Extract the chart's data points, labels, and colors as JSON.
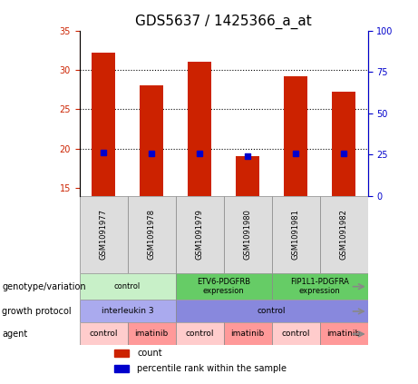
{
  "title": "GDS5637 / 1425366_a_at",
  "samples": [
    "GSM1091977",
    "GSM1091978",
    "GSM1091979",
    "GSM1091980",
    "GSM1091981",
    "GSM1091982"
  ],
  "counts": [
    32.2,
    28.0,
    31.0,
    19.0,
    29.2,
    27.3
  ],
  "percentile_ranks": [
    26.0,
    25.8,
    25.8,
    24.2,
    25.8,
    25.5
  ],
  "ylim_left": [
    14,
    35
  ],
  "ylim_right": [
    0,
    100
  ],
  "yticks_left": [
    15,
    20,
    25,
    30,
    35
  ],
  "yticks_right": [
    0,
    25,
    50,
    75,
    100
  ],
  "bar_color": "#cc2200",
  "dot_color": "#0000cc",
  "title_fontsize": 11,
  "bar_width": 0.5,
  "gridline_values": [
    20,
    25,
    30
  ],
  "genotype_groups": [
    {
      "label": "control",
      "span": [
        0,
        2
      ],
      "color": "#c8f0c8"
    },
    {
      "label": "ETV6-PDGFRB\nexpression",
      "span": [
        2,
        4
      ],
      "color": "#66cc66"
    },
    {
      "label": "FIP1L1-PDGFRA\nexpression",
      "span": [
        4,
        6
      ],
      "color": "#66cc66"
    }
  ],
  "growth_protocol_groups": [
    {
      "label": "interleukin 3",
      "span": [
        0,
        2
      ],
      "color": "#aaaaee"
    },
    {
      "label": "control",
      "span": [
        2,
        6
      ],
      "color": "#8888dd"
    }
  ],
  "agent_groups": [
    {
      "label": "control",
      "span": [
        0,
        1
      ],
      "color": "#ffcccc"
    },
    {
      "label": "imatinib",
      "span": [
        1,
        2
      ],
      "color": "#ff9999"
    },
    {
      "label": "control",
      "span": [
        2,
        3
      ],
      "color": "#ffcccc"
    },
    {
      "label": "imatinib",
      "span": [
        3,
        4
      ],
      "color": "#ff9999"
    },
    {
      "label": "control",
      "span": [
        4,
        5
      ],
      "color": "#ffcccc"
    },
    {
      "label": "imatinib",
      "span": [
        5,
        6
      ],
      "color": "#ff9999"
    }
  ],
  "row_labels": [
    "genotype/variation",
    "growth protocol",
    "agent"
  ],
  "sample_bg_color": "#dddddd",
  "legend_items": [
    {
      "label": "count",
      "color": "#cc2200"
    },
    {
      "label": "percentile rank within the sample",
      "color": "#0000cc"
    }
  ]
}
